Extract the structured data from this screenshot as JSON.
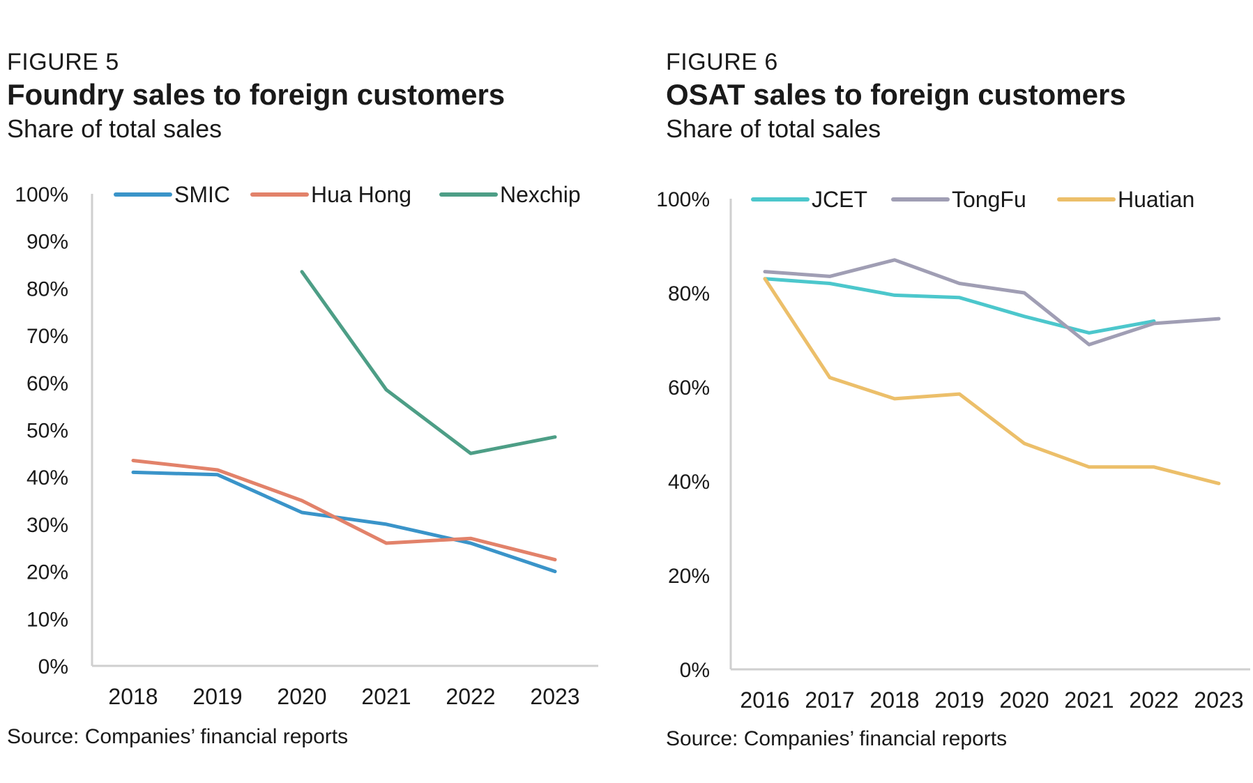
{
  "figures": [
    {
      "label": "FIGURE 5",
      "title": "Foundry sales to foreign customers",
      "subtitle": "Share of total sales",
      "source": "Source: Companies’ financial reports"
    },
    {
      "label": "FIGURE 6",
      "title": "OSAT sales to foreign customers",
      "subtitle": "Share of total sales",
      "source": "Source: Companies’ financial reports"
    }
  ],
  "chart_data": [
    {
      "type": "line",
      "title": "Foundry sales to foreign customers",
      "subtitle": "Share of total sales",
      "categories": [
        "2018",
        "2019",
        "2020",
        "2021",
        "2022",
        "2023"
      ],
      "ylim": [
        0,
        100
      ],
      "yticks": [
        "0%",
        "10%",
        "20%",
        "30%",
        "40%",
        "50%",
        "60%",
        "70%",
        "80%",
        "90%",
        "100%"
      ],
      "grid": false,
      "legend": "top",
      "series": [
        {
          "name": "SMIC",
          "color": "#3a94c9",
          "values": [
            41,
            40.5,
            32.5,
            30,
            26,
            20
          ]
        },
        {
          "name": "Hua Hong",
          "color": "#e2826a",
          "values": [
            43.5,
            41.5,
            35,
            26,
            27,
            22.5
          ]
        },
        {
          "name": "Nexchip",
          "color": "#4d9e86",
          "values": [
            null,
            null,
            83.5,
            58.5,
            45,
            48.5
          ]
        }
      ]
    },
    {
      "type": "line",
      "title": "OSAT sales to foreign customers",
      "subtitle": "Share of total sales",
      "categories": [
        "2016",
        "2017",
        "2018",
        "2019",
        "2020",
        "2021",
        "2022",
        "2023"
      ],
      "ylim": [
        0,
        100
      ],
      "yticks": [
        "0%",
        "20%",
        "40%",
        "60%",
        "80%",
        "100%"
      ],
      "grid": false,
      "legend": "top",
      "series": [
        {
          "name": "JCET",
          "color": "#4cc7cc",
          "values": [
            83,
            82,
            79.5,
            79,
            75,
            71.5,
            74,
            null
          ]
        },
        {
          "name": "TongFu",
          "color": "#a09eb4",
          "values": [
            84.5,
            83.5,
            87,
            82,
            80,
            69,
            73.5,
            74.5
          ]
        },
        {
          "name": "Huatian",
          "color": "#ecbf6a",
          "values": [
            83,
            62,
            57.5,
            58.5,
            48,
            43,
            43,
            39.5
          ]
        }
      ]
    }
  ]
}
